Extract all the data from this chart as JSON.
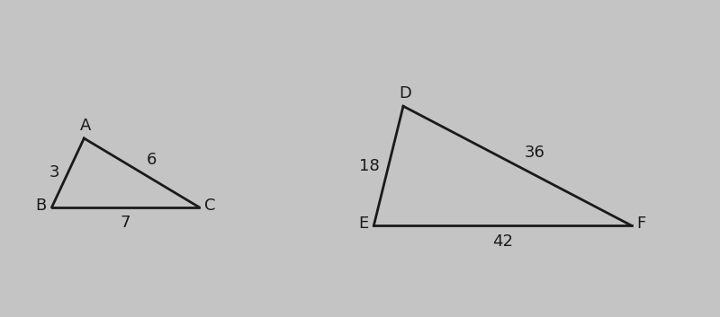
{
  "background_color": "#c4c4c4",
  "triangle_abc": {
    "B": [
      0.0,
      0.0
    ],
    "A": [
      0.35,
      0.75
    ],
    "C": [
      1.6,
      0.0
    ],
    "label_A": "A",
    "label_B": "B",
    "label_C": "C",
    "side_BA": "3",
    "side_AC": "6",
    "side_BC": "7"
  },
  "triangle_def": {
    "E": [
      0.0,
      0.0
    ],
    "D": [
      0.32,
      1.3
    ],
    "F": [
      2.8,
      0.0
    ],
    "label_D": "D",
    "label_E": "E",
    "label_F": "F",
    "side_ED": "18",
    "side_DF": "36",
    "side_EF": "42"
  },
  "line_color": "#1a1a1a",
  "line_width": 2.0,
  "font_size": 13
}
